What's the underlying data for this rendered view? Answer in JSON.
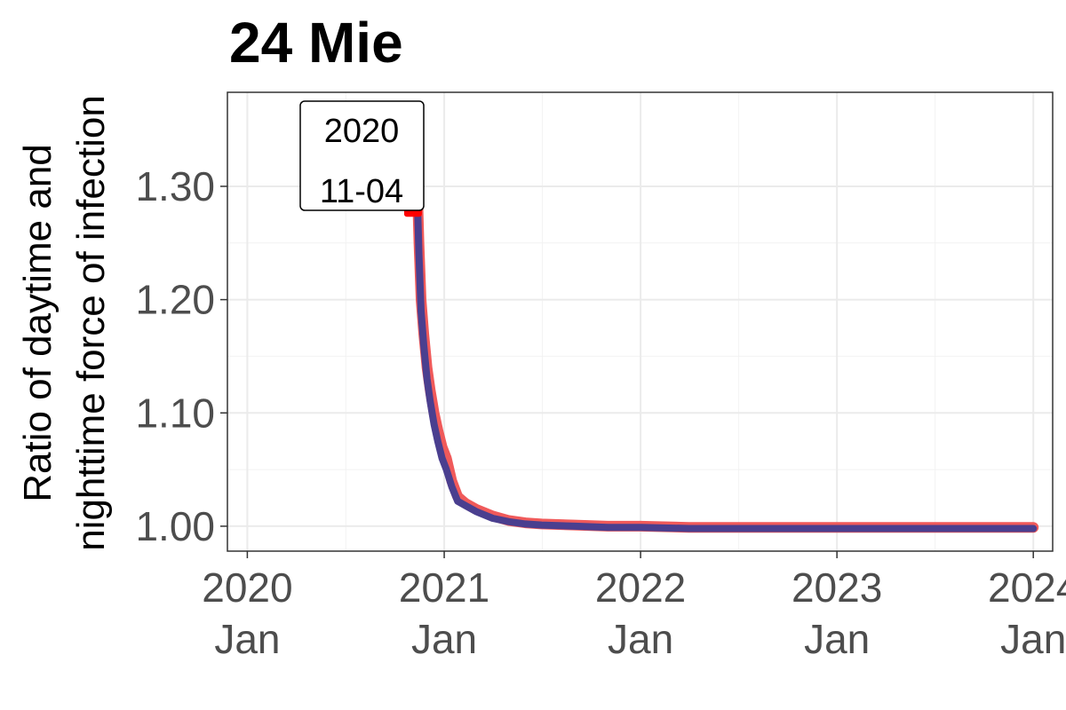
{
  "chart_data": {
    "type": "line",
    "title": "24 Mie",
    "ylabel_lines": [
      "Ratio of daytime and",
      "nighttime force of infection"
    ],
    "xlabel": "",
    "ylim": [
      0.978,
      1.383
    ],
    "xlim": [
      "2019-11-25",
      "2024-02-06"
    ],
    "grid": true,
    "legend": "none",
    "x_ticks": [
      {
        "date": "2020-01-01",
        "line1": "2020",
        "line2": "Jan"
      },
      {
        "date": "2021-01-01",
        "line1": "2021",
        "line2": "Jan"
      },
      {
        "date": "2022-01-01",
        "line1": "2022",
        "line2": "Jan"
      },
      {
        "date": "2023-01-01",
        "line1": "2023",
        "line2": "Jan"
      },
      {
        "date": "2024-01-01",
        "line1": "2024",
        "line2": "Jan"
      }
    ],
    "y_ticks": [
      1.0,
      1.1,
      1.2,
      1.3
    ],
    "y_tick_labels": [
      "1.00",
      "1.10",
      "1.20",
      "1.30"
    ],
    "series": [
      {
        "color": "#f05a5a",
        "x": [
          "2020-11-04",
          "2020-11-06",
          "2020-11-09",
          "2020-11-12",
          "2020-11-15",
          "2020-11-19",
          "2020-11-24",
          "2020-11-30",
          "2020-12-06",
          "2020-12-13",
          "2020-12-20",
          "2020-12-28",
          "2021-01-05",
          "2021-01-15",
          "2021-01-26",
          "2021-02-10",
          "2021-03-01",
          "2021-04-01",
          "2021-05-01",
          "2021-06-01",
          "2021-07-01",
          "2021-09-01",
          "2021-11-01",
          "2022-01-01",
          "2022-04-01",
          "2022-07-01",
          "2022-10-01",
          "2023-01-01",
          "2023-04-01",
          "2023-07-01",
          "2023-10-01",
          "2024-01-01"
        ],
        "y": [
          1.285,
          1.365,
          1.34,
          1.3,
          1.25,
          1.2,
          1.17,
          1.14,
          1.12,
          1.1,
          1.085,
          1.07,
          1.06,
          1.04,
          1.026,
          1.02,
          1.015,
          1.009,
          1.005,
          1.003,
          1.002,
          1.001,
          1.0,
          1.0,
          0.999,
          0.999,
          0.999,
          0.999,
          0.999,
          0.999,
          0.999,
          0.999
        ]
      },
      {
        "color": "#4a3f8f",
        "x": [
          "2020-11-04",
          "2020-11-06",
          "2020-11-09",
          "2020-11-12",
          "2020-11-15",
          "2020-11-19",
          "2020-11-24",
          "2020-11-30",
          "2020-12-06",
          "2020-12-13",
          "2020-12-20",
          "2020-12-28",
          "2021-01-05",
          "2021-01-15",
          "2021-01-26",
          "2021-02-10",
          "2021-03-01",
          "2021-04-01",
          "2021-05-01",
          "2021-06-01",
          "2021-07-01",
          "2021-09-01",
          "2021-11-01",
          "2022-01-01",
          "2022-04-01",
          "2022-07-01",
          "2022-10-01",
          "2023-01-01",
          "2023-04-01",
          "2023-07-01",
          "2023-10-01",
          "2024-01-01"
        ],
        "y": [
          1.278,
          1.355,
          1.33,
          1.29,
          1.24,
          1.19,
          1.16,
          1.13,
          1.11,
          1.09,
          1.075,
          1.06,
          1.05,
          1.035,
          1.022,
          1.018,
          1.013,
          1.007,
          1.004,
          1.002,
          1.001,
          1.0,
          0.999,
          0.999,
          0.998,
          0.998,
          0.998,
          0.998,
          0.998,
          0.998,
          0.998,
          0.998
        ]
      }
    ],
    "highlight": {
      "date": "2020-11-04",
      "y": 1.281,
      "color": "#ff0000"
    },
    "annotation": {
      "line1": "2020",
      "line2": "11-04"
    }
  }
}
